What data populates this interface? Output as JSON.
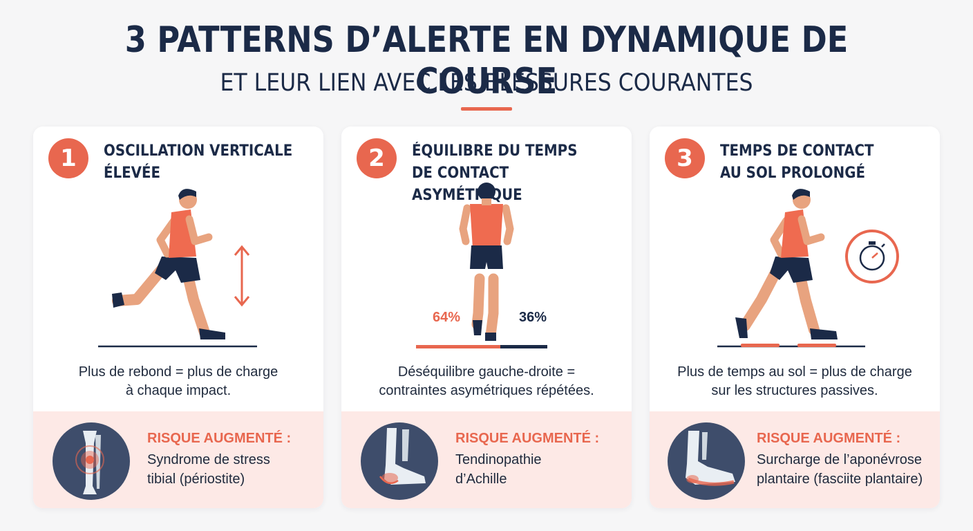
{
  "header": {
    "title": "3 PATTERNS D’ALERTE EN DYNAMIQUE DE COURSE",
    "subtitle": "ET LEUR LIEN AVEC LES BLESSURES COURANTES"
  },
  "colors": {
    "accent": "#e8674f",
    "navy": "#1b2a47",
    "risk_bg": "#fde9e6"
  },
  "cards": [
    {
      "number": "1",
      "title_line1": "OSCILLATION VERTICALE",
      "title_line2": "ÉLEVÉE",
      "desc_line1": "Plus de rebond = plus de charge",
      "desc_line2": "à chaque impact.",
      "risk_label": "RISQUE AUGMENTÉ :",
      "risk_line1": "Syndrome de stress",
      "risk_line2": "tibial (périostite)",
      "illustration_icon": "runner-bounce-arrow-icon",
      "risk_icon": "tibia-bone-icon"
    },
    {
      "number": "2",
      "title_line1": "ÉQUILIBRE DU TEMPS",
      "title_line2": "DE CONTACT ASYMÉTRIQUE",
      "left_pct": "64%",
      "right_pct": "36%",
      "left_share": 0.64,
      "desc_line1": "Déséquilibre gauche-droite =",
      "desc_line2": "contraintes asymétriques répétées.",
      "risk_label": "RISQUE AUGMENTÉ :",
      "risk_line1": "Tendinopathie",
      "risk_line2": "d’Achille",
      "illustration_icon": "runner-back-view-icon",
      "risk_icon": "achilles-foot-icon"
    },
    {
      "number": "3",
      "title_line1": "TEMPS DE CONTACT",
      "title_line2": "AU SOL PROLONGÉ",
      "desc_line1": "Plus de temps au sol = plus de charge",
      "desc_line2": "sur les structures passives.",
      "risk_label": "RISQUE AUGMENTÉ :",
      "risk_line1": "Surcharge de l’aponévrose",
      "risk_line2": "plantaire (fasciite plantaire)",
      "illustration_icon": "runner-stopwatch-icon",
      "risk_icon": "plantar-foot-icon"
    }
  ]
}
